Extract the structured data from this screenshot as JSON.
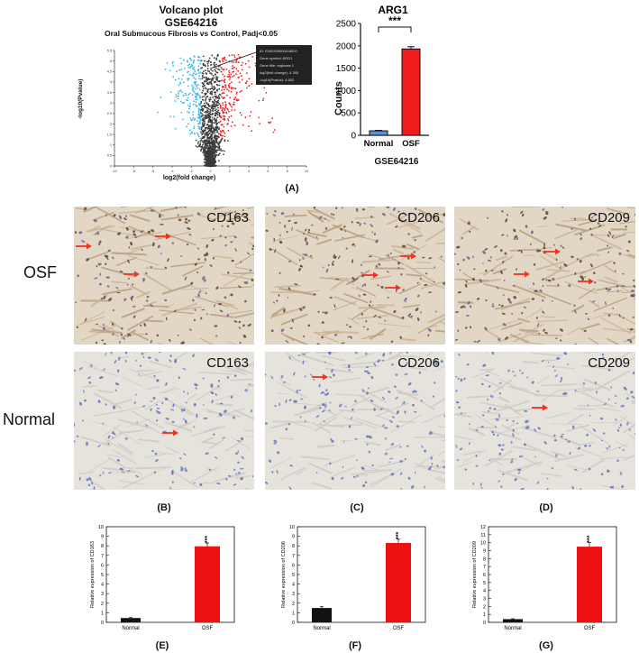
{
  "panel_a": {
    "volcano": {
      "title": "Volcano plot",
      "dataset": "GSE64216",
      "subtitle": "Oral Submucous Fibrosis vs Control, Padj<0.05",
      "ylabel": "-log10(Pvalue)",
      "xlabel": "log2(fold change)",
      "xticks": [
        "-10",
        "-8",
        "-6",
        "-4",
        "-2",
        "0",
        "2",
        "4",
        "6",
        "8",
        "10"
      ],
      "yticks": [
        "0",
        "0.5",
        "1",
        "1.5",
        "2",
        "2.5",
        "3",
        "3.5",
        "4",
        "4.5",
        "5",
        "5.5"
      ],
      "tooltip": [
        "ID: ENSG00000118520",
        "Gene symbol: ARG1",
        "Gene title: arginase 1",
        "log2(fold change): 4.393",
        "-log10(Pvalue): 4.652"
      ],
      "colors": {
        "down": "#39b8e8",
        "up": "#e8262a",
        "ns": "#3a3a3a"
      }
    },
    "label": "(A)"
  },
  "chart_data": [
    {
      "type": "bar",
      "title": "ARG1",
      "categories": [
        "Normal",
        "OSF"
      ],
      "values": [
        100,
        1930
      ],
      "errors": [
        10,
        50
      ],
      "ylabel": "Counts",
      "xlabel": "GSE64216",
      "ylim": [
        0,
        2500
      ],
      "yticks": [
        "0",
        "500",
        "1000",
        "1500",
        "2000",
        "2500"
      ],
      "significance": "***",
      "colors": [
        "#5b8fd6",
        "#ee1c1c"
      ]
    },
    {
      "type": "bar",
      "categories": [
        "Normal",
        "OSF"
      ],
      "values": [
        0.45,
        7.95
      ],
      "errors": [
        0.05,
        0.35
      ],
      "ylabel": "Relative expression of CD163",
      "ylim": [
        0,
        10
      ],
      "yticks": [
        "0",
        "1",
        "2",
        "3",
        "4",
        "5",
        "6",
        "7",
        "8",
        "9",
        "10"
      ],
      "significance": "***",
      "colors": [
        "#111111",
        "#ee1111"
      ]
    },
    {
      "type": "bar",
      "categories": [
        "Normal",
        "OSF"
      ],
      "values": [
        1.5,
        8.3
      ],
      "errors": [
        0.15,
        0.4
      ],
      "ylabel": "Relative expression of CD206",
      "ylim": [
        0,
        10
      ],
      "yticks": [
        "0",
        "1",
        "2",
        "3",
        "4",
        "5",
        "6",
        "7",
        "8",
        "9",
        "10"
      ],
      "significance": "***",
      "colors": [
        "#111111",
        "#ee1111"
      ]
    },
    {
      "type": "bar",
      "categories": [
        "Normal",
        "OSF"
      ],
      "values": [
        0.4,
        9.5
      ],
      "errors": [
        0.05,
        0.5
      ],
      "ylabel": "Relative expression of CD209",
      "ylim": [
        0,
        12
      ],
      "yticks": [
        "0",
        "1",
        "2",
        "3",
        "4",
        "5",
        "6",
        "7",
        "8",
        "9",
        "10",
        "11",
        "12"
      ],
      "significance": "***",
      "colors": [
        "#111111",
        "#ee1111"
      ]
    }
  ],
  "micrographs": {
    "row_labels": [
      "OSF",
      "Normal"
    ],
    "markers": [
      "CD163",
      "CD206",
      "CD209"
    ],
    "column_labels": [
      "(B)",
      "(C)",
      "(D)"
    ],
    "chart_labels": [
      "(E)",
      "(F)",
      "(G)"
    ]
  }
}
